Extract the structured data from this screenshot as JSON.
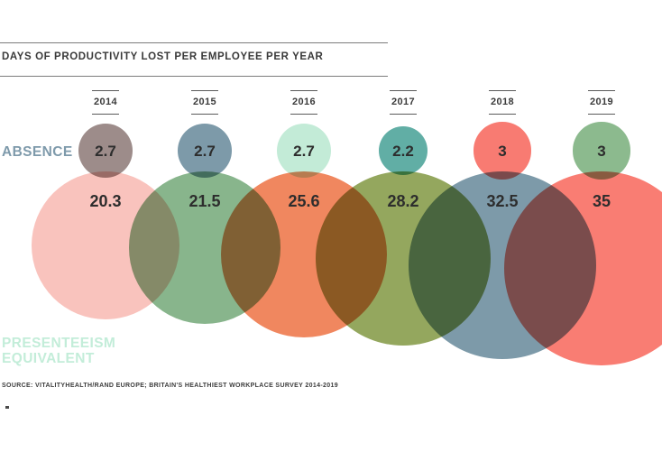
{
  "header": {
    "title": "DAYS OF PRODUCTIVITY LOST PER EMPLOYEE PER YEAR"
  },
  "labels": {
    "absence": "ABSENCE",
    "presenteeism_line1": "PRESENTEEISM",
    "presenteeism_line2": "EQUIVALENT"
  },
  "source": "SOURCE: VITALITYHEALTH/RAND EUROPE; BRITAIN'S HEALTHIEST WORKPLACE SURVEY 2014-2019",
  "chart_data": {
    "type": "proportional-circles",
    "title": "DAYS OF PRODUCTIVITY LOST PER EMPLOYEE PER YEAR",
    "categories": [
      "2014",
      "2015",
      "2016",
      "2017",
      "2018",
      "2019"
    ],
    "series": [
      {
        "name": "Absence",
        "values": [
          2.7,
          2.7,
          2.7,
          2.2,
          3,
          3
        ],
        "colors": [
          "#9d8c8a",
          "#7d9aa9",
          "#c3ebd7",
          "#61aea5",
          "#f87b72",
          "#8cba8e"
        ]
      },
      {
        "name": "Presenteeism equivalent",
        "values": [
          20.3,
          21.5,
          25.6,
          28.2,
          32.5,
          35
        ],
        "colors": [
          "#f9c3bd",
          "#88b58c",
          "#f0875f",
          "#94a75e",
          "#7d9aa9",
          "#f97d73"
        ]
      }
    ],
    "layout": {
      "x_centers": [
        117,
        227,
        337,
        447,
        557,
        667
      ],
      "radius_per_sqrt_value": 18.2,
      "small_circle_center_y": 167,
      "big_circle_top_y": 190,
      "big_value_label_y": 222,
      "year_header_top": 100,
      "blend": "multiply",
      "legend_position": "left-margin"
    }
  }
}
